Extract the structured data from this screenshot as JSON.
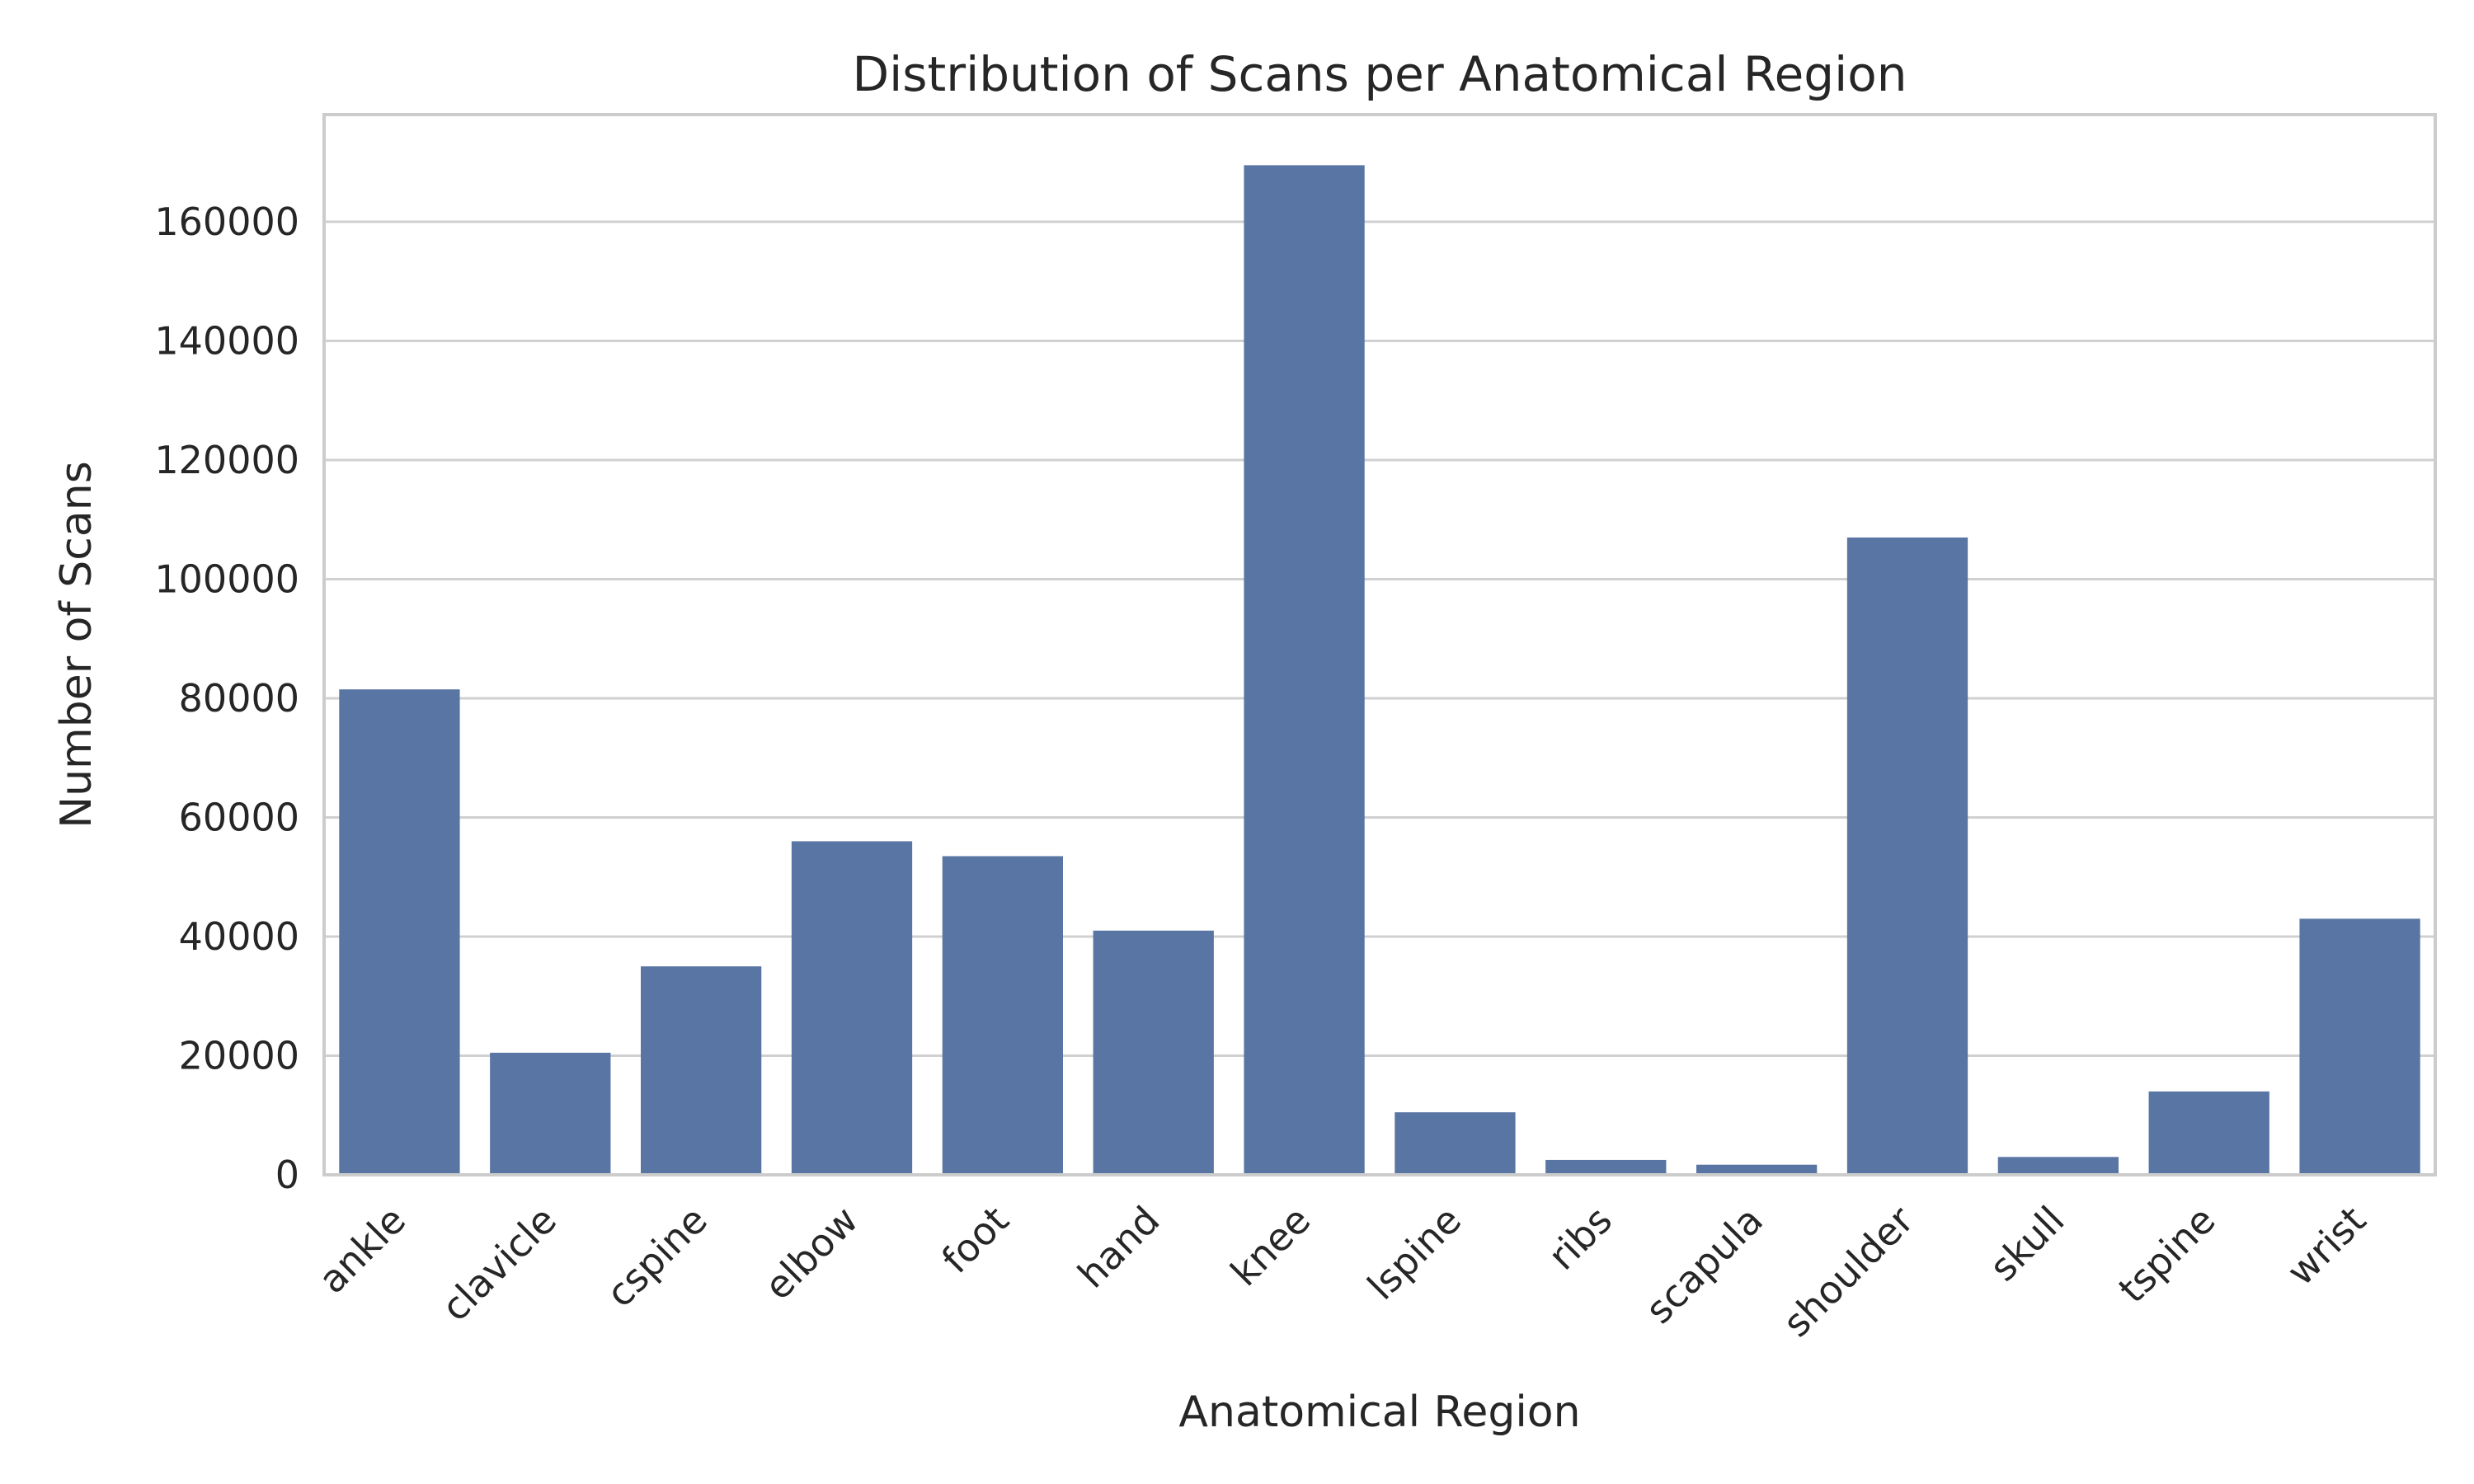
{
  "chart_data": {
    "type": "bar",
    "title": "Distribution of Scans per Anatomical Region",
    "xlabel": "Anatomical Region",
    "ylabel": "Number of Scans",
    "categories": [
      "ankle",
      "clavicle",
      "cspine",
      "elbow",
      "foot",
      "hand",
      "knee",
      "lspine",
      "ribs",
      "scapula",
      "shoulder",
      "skull",
      "tspine",
      "wrist"
    ],
    "values": [
      81500,
      20500,
      35000,
      56000,
      53500,
      41000,
      169500,
      10500,
      2500,
      1700,
      107000,
      3000,
      14000,
      43000
    ],
    "ylim": [
      0,
      178000
    ],
    "yticks": [
      0,
      20000,
      40000,
      60000,
      80000,
      100000,
      120000,
      140000,
      160000
    ],
    "grid": true,
    "legend": "none",
    "colors": {
      "bar": "#5975a4",
      "grid": "#d0d0d0",
      "frame": "#cccccc",
      "text": "#262626"
    }
  }
}
